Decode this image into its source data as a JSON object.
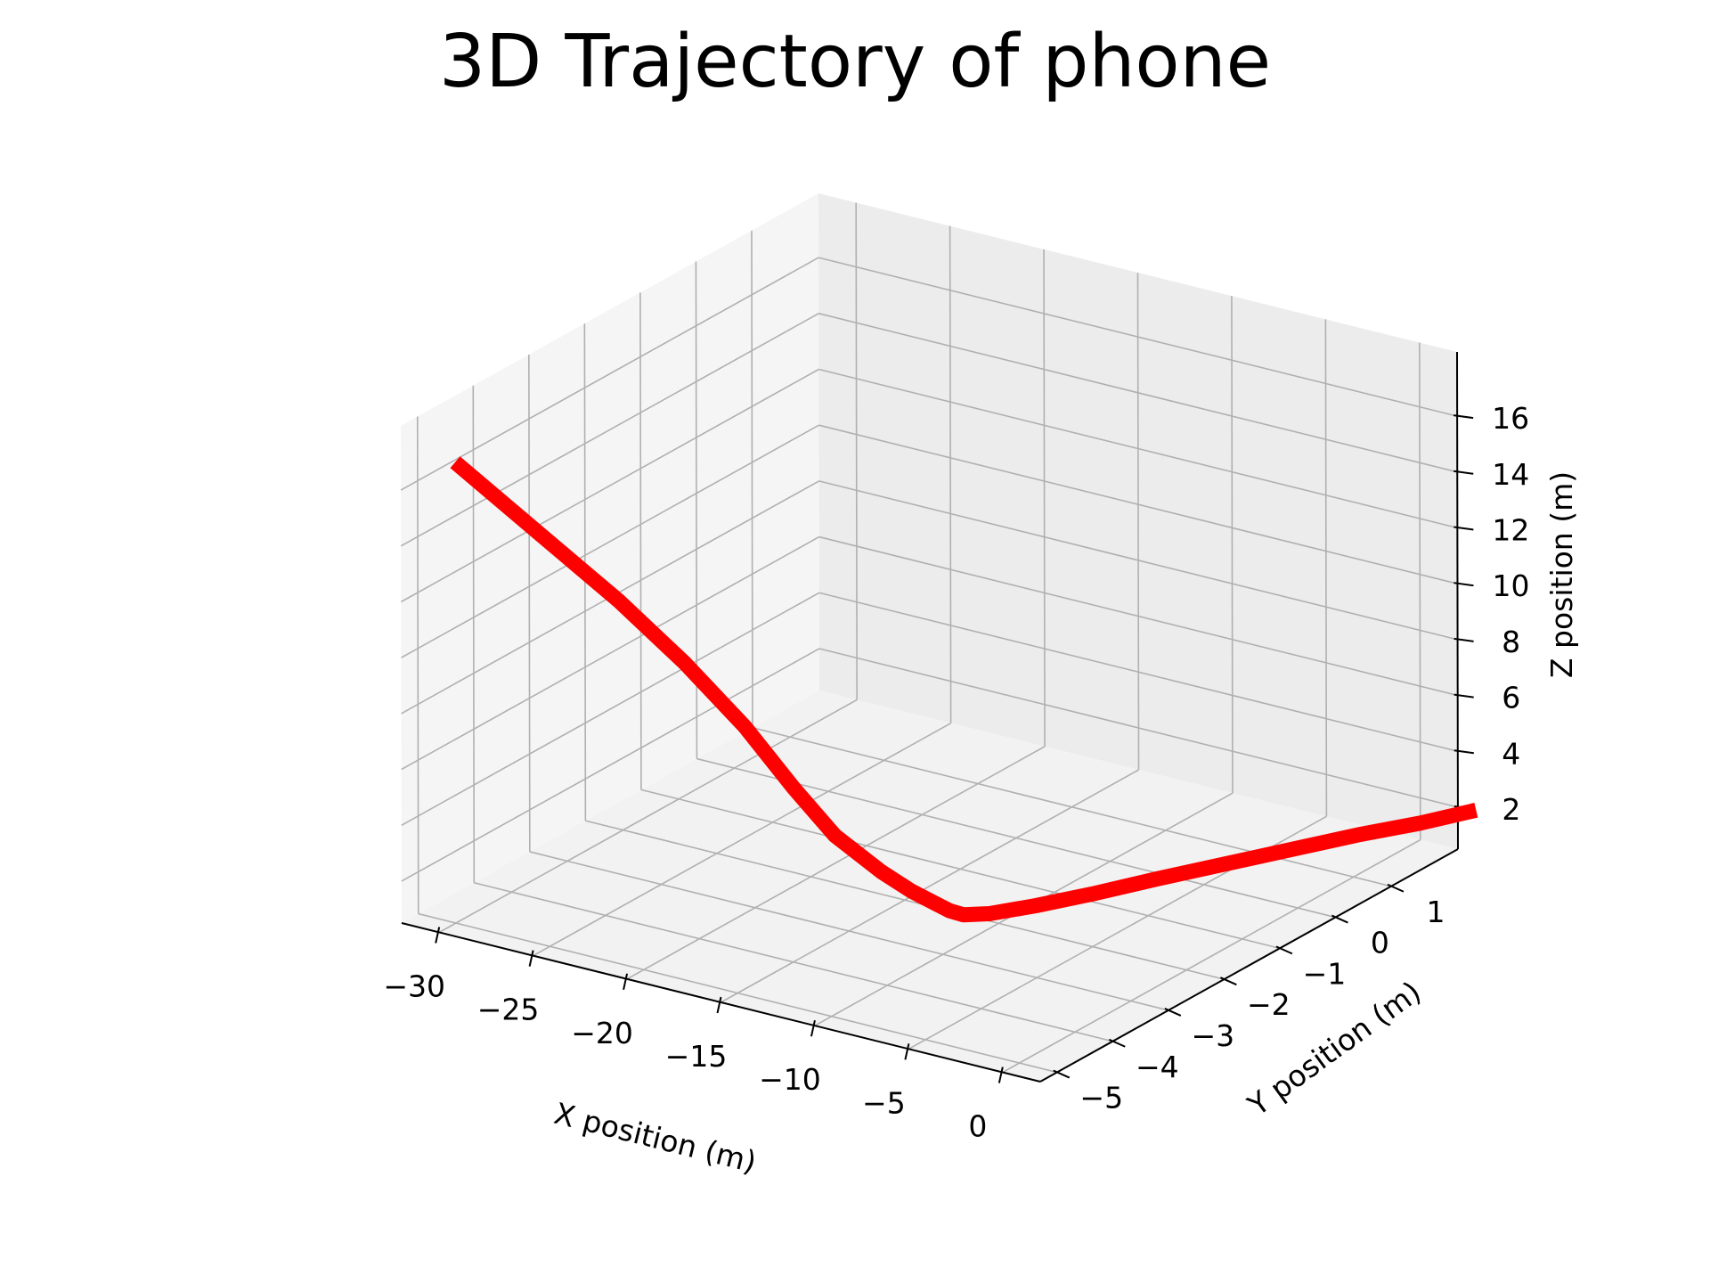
{
  "chart_data": {
    "type": "line",
    "projection": "3d",
    "title": "3D Trajectory of phone",
    "xlabel": "X position (m)",
    "ylabel": "Y position (m)",
    "zlabel": "Z position (m)",
    "xlim": [
      -32,
      2
    ],
    "ylim": [
      -5.3,
      2.2
    ],
    "zlim": [
      0.5,
      18.3
    ],
    "xticks": [
      -30,
      -25,
      -20,
      -15,
      -10,
      -5,
      0
    ],
    "yticks": [
      -5,
      -4,
      -3,
      -2,
      -1,
      0,
      1
    ],
    "zticks": [
      2,
      4,
      6,
      8,
      10,
      12,
      14,
      16
    ],
    "grid": true,
    "series": [
      {
        "color": "#ff0000",
        "x": [
          -30.0,
          -27.0,
          -24.0,
          -21.6,
          -19.4,
          -17.6,
          -16.1,
          -14.4,
          -13.3,
          -12.5,
          -11.9,
          -11.4,
          -10.8,
          -9.8,
          -8.6,
          -7.2,
          -5.7,
          -4.2,
          -2.7,
          -1.2,
          0.0
        ],
        "y": [
          -5.0,
          -4.54,
          -4.08,
          -3.72,
          -3.38,
          -3.11,
          -2.88,
          -2.62,
          -2.45,
          -2.33,
          -2.24,
          -2.16,
          -1.9,
          -1.4,
          -0.8,
          -0.1,
          0.6,
          1.3,
          2.0,
          2.6,
          3.2
        ],
        "z": [
          17.0,
          14.5,
          12.0,
          9.8,
          7.5,
          5.3,
          3.6,
          2.3,
          1.6,
          1.2,
          0.9,
          0.75,
          0.6,
          0.5,
          0.45,
          0.45,
          0.45,
          0.45,
          0.45,
          0.45,
          0.45
        ]
      }
    ]
  }
}
